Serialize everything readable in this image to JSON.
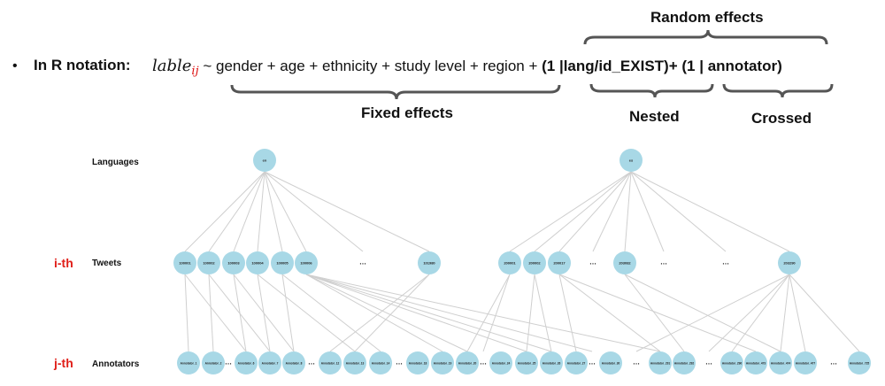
{
  "header": {
    "bullet": "•",
    "lead": "In R notation:",
    "formula": {
      "lhs": "lable",
      "subscript": "ij",
      "tilde": " ~ ",
      "fixed": "gender + age + ethnicity + study level + region + ",
      "nested": "(1 |lang/id_EXIST)",
      "plus": "+ ",
      "crossed": "(1 | annotator)"
    }
  },
  "braces": {
    "random": "Random effects",
    "fixed": "Fixed effects",
    "nested": "Nested",
    "crossed": "Crossed"
  },
  "rows": {
    "languages": "Languages",
    "tweets": "Tweets",
    "annotators": "Annotators",
    "i_index": "i-th",
    "j_index": "j-th"
  },
  "graph": {
    "languages": [
      "en",
      "es"
    ],
    "tweets": [
      "100001",
      "100002",
      "100003",
      "100004",
      "100005",
      "100006",
      "…",
      "101980",
      "200001",
      "200002",
      "200017",
      "…",
      "203082",
      "…",
      "…",
      "203290"
    ],
    "annotators": [
      "Annotator_1",
      "Annotator_2",
      "…",
      "Annotator_6",
      "Annotator_7",
      "Annotator_8",
      "…",
      "Annotator_12",
      "Annotator_13",
      "Annotator_14",
      "…",
      "Annotator_18",
      "Annotator_19",
      "Annotator_20",
      "…",
      "Annotator_24",
      "Annotator_25",
      "Annotator_26",
      "Annotator_27",
      "…",
      "Annotator_30",
      "…",
      "Annotator_291",
      "Annotator_292",
      "…",
      "Annotator_296",
      "Annotator_473",
      "Annotator_474",
      "Annotator_477",
      "…",
      "Annotator_725"
    ]
  },
  "colors": {
    "node": "#a8d8e6",
    "edge": "#cfcfcf",
    "index": "#e0201a",
    "subscript": "#dd1111"
  }
}
